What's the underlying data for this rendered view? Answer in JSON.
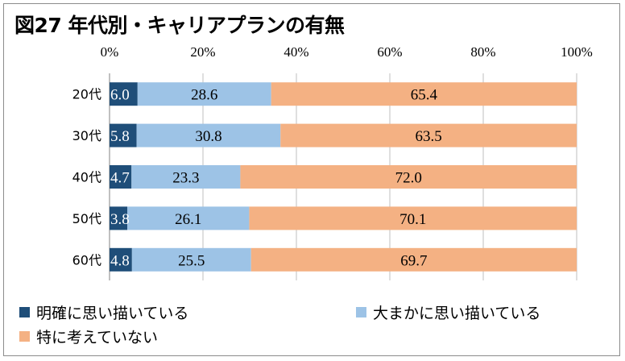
{
  "title": "図27 年代別・キャリアプランの有無",
  "chart_data": {
    "type": "bar",
    "orientation": "horizontal",
    "stacked": true,
    "unit": "percent",
    "title": "図27 年代別・キャリアプランの有無",
    "categories": [
      "20代",
      "30代",
      "40代",
      "50代",
      "60代"
    ],
    "series": [
      {
        "name": "明確に思い描いている",
        "color": "#1f4e79",
        "label_color": "#ffffff",
        "values": [
          6.0,
          5.8,
          4.7,
          3.8,
          4.8
        ]
      },
      {
        "name": "大まかに思い描いている",
        "color": "#9dc3e6",
        "label_color": "#000000",
        "values": [
          28.6,
          30.8,
          23.3,
          26.1,
          25.5
        ]
      },
      {
        "name": "特に考えていない",
        "color": "#f4b183",
        "label_color": "#000000",
        "values": [
          65.4,
          63.5,
          72.0,
          70.1,
          69.7
        ]
      }
    ],
    "x_ticks": [
      "0%",
      "20%",
      "40%",
      "60%",
      "80%",
      "100%"
    ],
    "xlim": [
      0,
      100
    ],
    "axis_position": "top",
    "grid": true,
    "legend_position": "bottom"
  }
}
